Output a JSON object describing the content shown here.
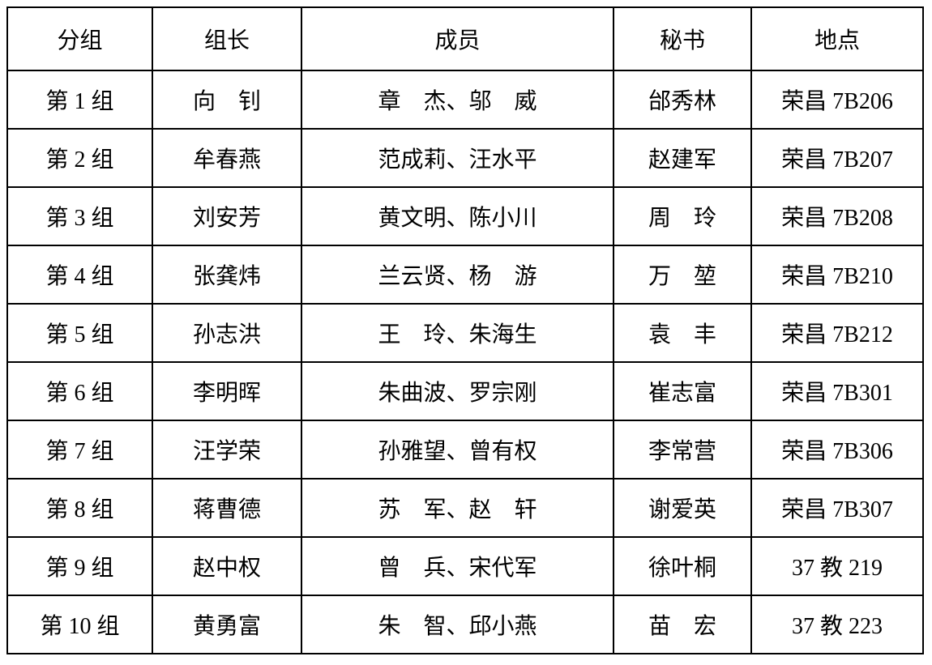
{
  "table": {
    "headers": [
      "分组",
      "组长",
      "成员",
      "秘书",
      "地点"
    ],
    "rows": [
      [
        "第 1 组",
        "向　钊",
        "章　杰、邬　威",
        "邰秀林",
        "荣昌 7B206"
      ],
      [
        "第 2 组",
        "牟春燕",
        "范成莉、汪水平",
        "赵建军",
        "荣昌 7B207"
      ],
      [
        "第 3 组",
        "刘安芳",
        "黄文明、陈小川",
        "周　玲",
        "荣昌 7B208"
      ],
      [
        "第 4 组",
        "张龚炜",
        "兰云贤、杨　游",
        "万　堃",
        "荣昌 7B210"
      ],
      [
        "第 5 组",
        "孙志洪",
        "王　玲、朱海生",
        "袁　丰",
        "荣昌 7B212"
      ],
      [
        "第 6 组",
        "李明晖",
        "朱曲波、罗宗刚",
        "崔志富",
        "荣昌 7B301"
      ],
      [
        "第 7 组",
        "汪学荣",
        "孙雅望、曾有权",
        "李常营",
        "荣昌 7B306"
      ],
      [
        "第 8 组",
        "蒋曹德",
        "苏　军、赵　轩",
        "谢爱英",
        "荣昌 7B307"
      ],
      [
        "第 9 组",
        "赵中权",
        "曾　兵、宋代军",
        "徐叶桐",
        "37 教 219"
      ],
      [
        "第 10 组",
        "黄勇富",
        "朱　智、邱小燕",
        "苗　宏",
        "37 教 223"
      ]
    ],
    "border_color": "#000000",
    "text_color": "#000000",
    "background_color": "#ffffff"
  }
}
